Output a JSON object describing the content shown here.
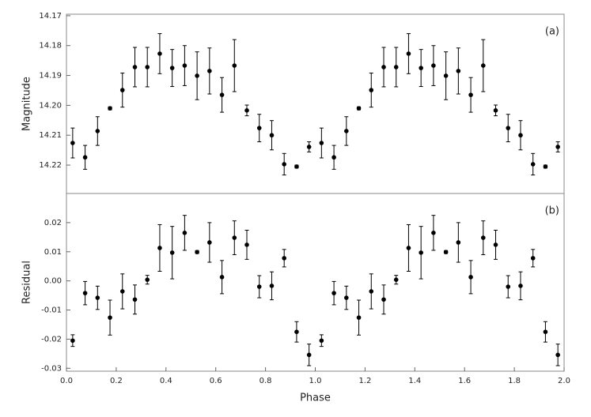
{
  "chart_data": [
    {
      "type": "scatter",
      "annotation": "(a)",
      "ylabel": "Magnitude",
      "xlim": [
        0,
        2
      ],
      "ylim": [
        14.2295,
        14.1695
      ],
      "yticks": [
        14.17,
        14.18,
        14.19,
        {
          "value": 14.2,
          "label": "14.20"
        },
        14.21,
        14.22
      ],
      "x": [
        0.025,
        0.075,
        0.125,
        0.175,
        0.225,
        0.275,
        0.325,
        0.375,
        0.425,
        0.475,
        0.525,
        0.575,
        0.625,
        0.675,
        0.725,
        0.775,
        0.825,
        0.875,
        0.925,
        0.975,
        1.025,
        1.075,
        1.125,
        1.175,
        1.225,
        1.275,
        1.325,
        1.375,
        1.425,
        1.475,
        1.525,
        1.575,
        1.625,
        1.675,
        1.725,
        1.775,
        1.825,
        1.875,
        1.925,
        1.975
      ],
      "series": [
        {
          "color": "#000000",
          "values": [
            14.2126,
            14.2174,
            14.2086,
            14.201,
            14.1949,
            14.1872,
            14.1872,
            14.1827,
            14.1875,
            14.1867,
            14.1901,
            14.1885,
            14.1965,
            14.1867,
            14.2017,
            14.2076,
            14.21,
            14.2197,
            14.2205,
            14.2139,
            14.2126,
            14.2174,
            14.2086,
            14.201,
            14.1949,
            14.1872,
            14.1872,
            14.1827,
            14.1875,
            14.1867,
            14.1901,
            14.1885,
            14.1965,
            14.1867,
            14.2017,
            14.2076,
            14.21,
            14.2197,
            14.2205,
            14.2139
          ],
          "errors": [
            0.005,
            0.004,
            0.0048,
            0.0005,
            0.0057,
            0.0066,
            0.0066,
            0.0067,
            0.0062,
            0.0067,
            0.008,
            0.0077,
            0.0058,
            0.0087,
            0.0018,
            0.0046,
            0.0049,
            0.0036,
            0.0005,
            0.0017,
            0.005,
            0.004,
            0.0048,
            0.0005,
            0.0057,
            0.0066,
            0.0066,
            0.0067,
            0.0062,
            0.0067,
            0.008,
            0.0077,
            0.0058,
            0.0087,
            0.0018,
            0.0046,
            0.0049,
            0.0036,
            0.0005,
            0.0017
          ]
        }
      ]
    },
    {
      "type": "scatter",
      "annotation": "(b)",
      "ylabel": "Residual",
      "xlabel": "Phase",
      "xlim": [
        0,
        2
      ],
      "ylim": [
        -0.031,
        0.03
      ],
      "xticks": [
        {
          "value": 0,
          "label": "0.0"
        },
        0.2,
        0.4,
        0.6,
        0.8,
        {
          "value": 1,
          "label": "1.0"
        },
        1.2,
        1.4,
        1.6,
        1.8,
        {
          "value": 2,
          "label": "2.0"
        }
      ],
      "yticks": [
        0.02,
        0.01,
        {
          "value": 0,
          "label": "0.00"
        },
        -0.01,
        -0.02,
        -0.03
      ],
      "x": [
        0.025,
        0.075,
        0.125,
        0.175,
        0.225,
        0.275,
        0.325,
        0.375,
        0.425,
        0.475,
        0.525,
        0.575,
        0.625,
        0.675,
        0.725,
        0.775,
        0.825,
        0.875,
        0.925,
        0.975,
        1.025,
        1.075,
        1.125,
        1.175,
        1.225,
        1.275,
        1.325,
        1.375,
        1.425,
        1.475,
        1.525,
        1.575,
        1.625,
        1.675,
        1.725,
        1.775,
        1.825,
        1.875,
        1.925,
        1.975
      ],
      "series": [
        {
          "color": "#000000",
          "values": [
            -0.0205,
            -0.0042,
            -0.0058,
            -0.0126,
            -0.0036,
            -0.0064,
            0.0004,
            0.0113,
            0.0097,
            0.0165,
            0.0099,
            0.0132,
            0.0013,
            0.0148,
            0.0124,
            -0.002,
            -0.0017,
            0.0078,
            -0.0175,
            -0.0254,
            -0.0205,
            -0.0042,
            -0.0058,
            -0.0126,
            -0.0036,
            -0.0064,
            0.0004,
            0.0113,
            0.0097,
            0.0165,
            0.0099,
            0.0132,
            0.0013,
            0.0148,
            0.0124,
            -0.002,
            -0.0017,
            0.0078,
            -0.0175,
            -0.0254
          ],
          "errors": [
            0.002,
            0.004,
            0.004,
            0.006,
            0.006,
            0.005,
            0.0015,
            0.008,
            0.009,
            0.006,
            0.0005,
            0.0068,
            0.0057,
            0.0058,
            0.005,
            0.0038,
            0.0048,
            0.003,
            0.0035,
            0.0037,
            0.002,
            0.004,
            0.004,
            0.006,
            0.006,
            0.005,
            0.0015,
            0.008,
            0.009,
            0.006,
            0.0005,
            0.0068,
            0.0057,
            0.0058,
            0.005,
            0.0038,
            0.0048,
            0.003,
            0.0035,
            0.0037
          ]
        }
      ]
    }
  ]
}
